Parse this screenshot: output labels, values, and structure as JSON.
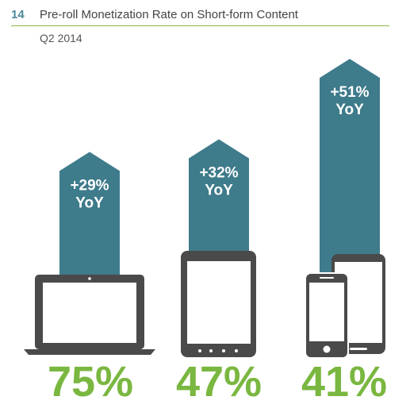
{
  "header": {
    "number": "14",
    "title": "Pre-roll Monetization Rate on Short-form Content",
    "subtitle": "Q2 2014"
  },
  "colors": {
    "arrow": "#3e7b8b",
    "green": "#7ab740",
    "device_dark": "#4a4a4a",
    "accent_number": "#4d8a99",
    "label_text": "#ffffff"
  },
  "chart_data": {
    "type": "bar",
    "title": "Pre-roll Monetization Rate on Short-form Content",
    "subtitle": "Q2 2014",
    "categories": [
      "Desktop",
      "Tablet",
      "Smartphone"
    ],
    "series": [
      {
        "values": [
          75,
          47,
          41
        ]
      }
    ],
    "yoy": [
      29,
      32,
      51
    ],
    "value_labels": [
      "75%",
      "47%",
      "41%"
    ],
    "yoy_labels": [
      [
        "+29%",
        "YoY"
      ],
      [
        "+32%",
        "YoY"
      ],
      [
        "+51%",
        "YoY"
      ]
    ],
    "category_icons": [
      "laptop-icon",
      "tablet-icon",
      "smartphones-icon"
    ]
  }
}
